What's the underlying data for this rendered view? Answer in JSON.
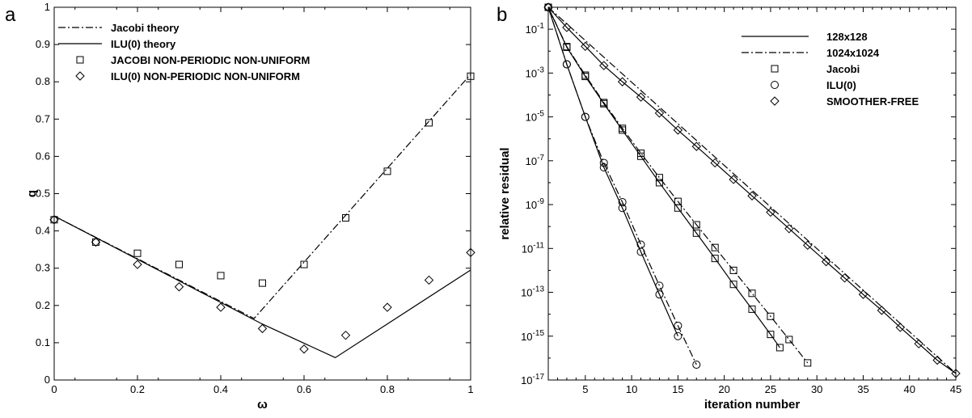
{
  "chart_data": [
    {
      "panel_label": "a",
      "type": "line",
      "xlabel": "ω",
      "ylabel": "q",
      "xlim": [
        0,
        1
      ],
      "ylim": [
        0,
        1
      ],
      "xticks": [
        "0",
        "0.2",
        "0.4",
        "0.6",
        "0.8",
        "1"
      ],
      "yticks": [
        "0",
        "0.1",
        "0.2",
        "0.3",
        "0.4",
        "0.5",
        "0.6",
        "0.7",
        "0.8",
        "0.9",
        "1"
      ],
      "legend_position": "top-left",
      "series": [
        {
          "name": "Jacobi theory",
          "kind": "line",
          "dash": "dashdot",
          "x": [
            0,
            0.48,
            1
          ],
          "y": [
            0.44,
            0.165,
            0.82
          ]
        },
        {
          "name": "ILU(0) theory",
          "kind": "line",
          "dash": "solid",
          "x": [
            0,
            0.5,
            0.675,
            1
          ],
          "y": [
            0.44,
            0.15,
            0.06,
            0.295
          ]
        },
        {
          "name": "JACOBI NON-PERIODIC NON-UNIFORM",
          "kind": "marker",
          "marker": "square",
          "x": [
            0,
            0.1,
            0.2,
            0.3,
            0.4,
            0.5,
            0.6,
            0.7,
            0.8,
            0.9,
            1.0
          ],
          "y": [
            0.43,
            0.37,
            0.34,
            0.31,
            0.28,
            0.26,
            0.31,
            0.435,
            0.56,
            0.69,
            0.815
          ]
        },
        {
          "name": "ILU(0) NON-PERIODIC NON-UNIFORM",
          "kind": "marker",
          "marker": "diamond",
          "x": [
            0,
            0.1,
            0.2,
            0.3,
            0.4,
            0.5,
            0.6,
            0.7,
            0.8,
            0.9,
            1.0
          ],
          "y": [
            0.43,
            0.37,
            0.31,
            0.25,
            0.195,
            0.138,
            0.083,
            0.12,
            0.195,
            0.268,
            0.342
          ]
        }
      ]
    },
    {
      "panel_label": "b",
      "type": "line",
      "xlabel": "iteration number",
      "ylabel": "relative residual",
      "xlim": [
        1,
        45
      ],
      "yscale": "log",
      "ylim": [
        1e-17,
        1
      ],
      "xticks": [
        "5",
        "10",
        "15",
        "20",
        "25",
        "30",
        "35",
        "40",
        "45"
      ],
      "yticks": [
        {
          "base": "10",
          "exp": "-1",
          "value": 0.1
        },
        {
          "base": "10",
          "exp": "-3",
          "value": 0.001
        },
        {
          "base": "10",
          "exp": "-5",
          "value": 1e-05
        },
        {
          "base": "10",
          "exp": "-7",
          "value": 1e-07
        },
        {
          "base": "10",
          "exp": "-9",
          "value": 1e-09
        },
        {
          "base": "10",
          "exp": "-11",
          "value": 1e-11
        },
        {
          "base": "10",
          "exp": "-13",
          "value": 1e-13
        },
        {
          "base": "10",
          "exp": "-15",
          "value": 1e-15
        },
        {
          "base": "10",
          "exp": "-17",
          "value": 1e-17
        }
      ],
      "legend_position": "top-right",
      "legend": [
        {
          "label": "128x128",
          "kind": "line",
          "dash": "solid"
        },
        {
          "label": "1024x1024",
          "kind": "line",
          "dash": "dashdot"
        },
        {
          "label": "Jacobi",
          "kind": "marker",
          "marker": "square"
        },
        {
          "label": "ILU(0)",
          "kind": "marker",
          "marker": "circle"
        },
        {
          "label": "SMOOTHER-FREE",
          "kind": "marker",
          "marker": "diamond"
        }
      ],
      "series": [
        {
          "name": "Jacobi",
          "grid": "128x128",
          "marker": "square",
          "dash": "solid",
          "x": [
            1,
            3,
            5,
            7,
            9,
            11,
            13,
            15,
            17,
            19,
            21,
            23,
            25,
            26
          ],
          "y": [
            1,
            0.015,
            0.0007,
            4e-05,
            2.5e-06,
            1.6e-07,
            1e-08,
            7e-10,
            5e-11,
            3.5e-12,
            2.3e-13,
            1.7e-14,
            1.2e-15,
            3e-16
          ]
        },
        {
          "name": "Jacobi",
          "grid": "1024x1024",
          "marker": "square",
          "dash": "dashdot",
          "x": [
            1,
            3,
            5,
            7,
            9,
            11,
            13,
            15,
            17,
            19,
            21,
            23,
            25,
            27,
            29
          ],
          "y": [
            1,
            0.016,
            0.0008,
            4.5e-05,
            3e-06,
            2.2e-07,
            1.7e-08,
            1.4e-09,
            1.2e-10,
            1.1e-11,
            1e-12,
            9e-14,
            8e-15,
            7e-16,
            6e-17
          ]
        },
        {
          "name": "ILU(0)",
          "grid": "128x128",
          "marker": "circle",
          "dash": "solid",
          "x": [
            1,
            3,
            5,
            7,
            9,
            11,
            13,
            15
          ],
          "y": [
            1,
            0.0025,
            1e-05,
            5e-08,
            7e-10,
            7e-12,
            8e-14,
            1e-15
          ]
        },
        {
          "name": "ILU(0)",
          "grid": "1024x1024",
          "marker": "circle",
          "dash": "dashdot",
          "x": [
            1,
            3,
            5,
            7,
            9,
            11,
            13,
            15,
            17
          ],
          "y": [
            1,
            0.0025,
            1e-05,
            8e-08,
            1.3e-09,
            1.5e-11,
            2e-13,
            3e-15,
            5e-17
          ]
        },
        {
          "name": "SMOOTHER-FREE",
          "grid": "128x128",
          "marker": "diamond",
          "dash": "solid",
          "x": [
            1,
            3,
            5,
            7,
            9,
            11,
            13,
            15,
            17,
            19,
            21,
            23,
            25,
            27,
            29,
            31,
            33,
            35,
            37,
            39,
            41,
            43,
            45
          ],
          "y": [
            1,
            0.12,
            0.0165,
            0.0022,
            0.0004,
            8e-05,
            1.5e-05,
            2.5e-06,
            4.5e-07,
            8e-08,
            1.4e-08,
            2.5e-09,
            4.5e-10,
            8e-11,
            1.4e-11,
            2.5e-12,
            4.5e-13,
            8e-14,
            1.5e-14,
            2.5e-15,
            4.5e-16,
            8e-17,
            2e-17
          ]
        },
        {
          "name": "SMOOTHER-FREE",
          "grid": "1024x1024",
          "marker": "none",
          "dash": "dashdot",
          "x": [
            1,
            45
          ],
          "y": [
            1,
            2e-17
          ]
        }
      ]
    }
  ]
}
